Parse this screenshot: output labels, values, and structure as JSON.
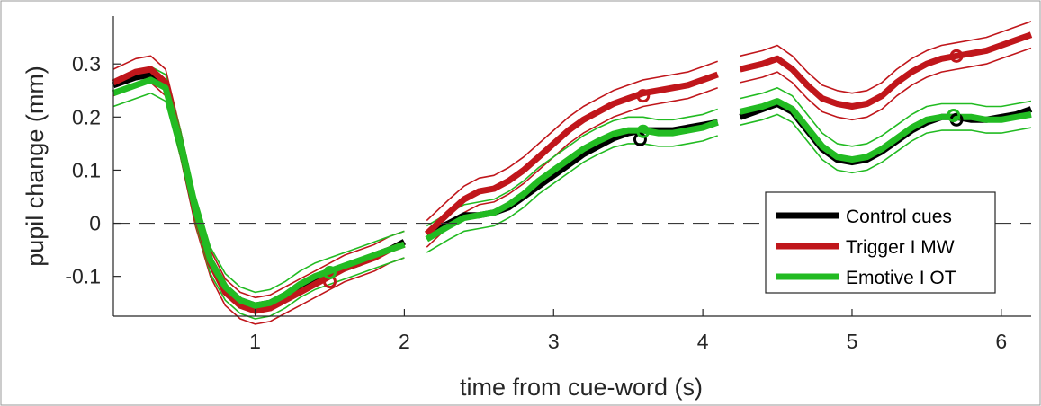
{
  "chart_data": {
    "type": "line",
    "title": "",
    "xlabel": "time from cue-word (s)",
    "ylabel": "pupil change (mm)",
    "xlim": [
      0.05,
      6.2
    ],
    "ylim": [
      -0.175,
      0.39
    ],
    "xticks": [
      1,
      2,
      3,
      4,
      5,
      6
    ],
    "xtick_labels": [
      "1",
      "2",
      "3",
      "4",
      "5",
      "6"
    ],
    "yticks": [
      -0.1,
      0,
      0.1,
      0.2,
      0.3
    ],
    "ytick_labels": [
      "-0.1",
      "0",
      "0.1",
      "0.2",
      "0.3"
    ],
    "zero_line": {
      "y": 0,
      "style": "dashed"
    },
    "legend_position": "bottom-right",
    "grid": false,
    "segments": [
      [
        0.05,
        2.0
      ],
      [
        2.15,
        4.1
      ],
      [
        4.25,
        6.2
      ]
    ],
    "series": [
      {
        "name": "Control cues",
        "color": "#000000",
        "show_band": false,
        "points": [
          [
            0.05,
            0.26
          ],
          [
            0.2,
            0.275
          ],
          [
            0.3,
            0.28
          ],
          [
            0.4,
            0.26
          ],
          [
            0.5,
            0.15
          ],
          [
            0.6,
            0.02
          ],
          [
            0.7,
            -0.07
          ],
          [
            0.8,
            -0.12
          ],
          [
            0.9,
            -0.145
          ],
          [
            1.0,
            -0.155
          ],
          [
            1.1,
            -0.15
          ],
          [
            1.2,
            -0.135
          ],
          [
            1.3,
            -0.12
          ],
          [
            1.4,
            -0.105
          ],
          [
            1.5,
            -0.095
          ],
          [
            1.6,
            -0.085
          ],
          [
            1.7,
            -0.075
          ],
          [
            1.8,
            -0.06
          ],
          [
            1.9,
            -0.05
          ],
          [
            2.0,
            -0.035
          ],
          [
            2.15,
            -0.02
          ],
          [
            2.3,
            0.0
          ],
          [
            2.4,
            0.015
          ],
          [
            2.5,
            0.015
          ],
          [
            2.6,
            0.02
          ],
          [
            2.7,
            0.03
          ],
          [
            2.8,
            0.05
          ],
          [
            2.9,
            0.07
          ],
          [
            3.0,
            0.09
          ],
          [
            3.1,
            0.11
          ],
          [
            3.2,
            0.13
          ],
          [
            3.3,
            0.145
          ],
          [
            3.4,
            0.16
          ],
          [
            3.5,
            0.17
          ],
          [
            3.6,
            0.175
          ],
          [
            3.7,
            0.175
          ],
          [
            3.8,
            0.175
          ],
          [
            3.9,
            0.18
          ],
          [
            4.0,
            0.185
          ],
          [
            4.1,
            0.19
          ],
          [
            4.25,
            0.2
          ],
          [
            4.4,
            0.215
          ],
          [
            4.5,
            0.225
          ],
          [
            4.6,
            0.21
          ],
          [
            4.7,
            0.175
          ],
          [
            4.8,
            0.14
          ],
          [
            4.9,
            0.12
          ],
          [
            5.0,
            0.115
          ],
          [
            5.1,
            0.12
          ],
          [
            5.2,
            0.135
          ],
          [
            5.3,
            0.155
          ],
          [
            5.4,
            0.175
          ],
          [
            5.5,
            0.19
          ],
          [
            5.6,
            0.2
          ],
          [
            5.7,
            0.2
          ],
          [
            5.8,
            0.195
          ],
          [
            5.9,
            0.195
          ],
          [
            6.0,
            0.2
          ],
          [
            6.1,
            0.205
          ],
          [
            6.2,
            0.215
          ]
        ],
        "marker": {
          "x": 3.58,
          "y": 0.158
        },
        "marker2": {
          "x": 5.7,
          "y": 0.195
        }
      },
      {
        "name": "Trigger I MW",
        "color": "#c0161b",
        "band_width": 0.025,
        "show_band": true,
        "points": [
          [
            0.05,
            0.265
          ],
          [
            0.2,
            0.285
          ],
          [
            0.3,
            0.29
          ],
          [
            0.4,
            0.265
          ],
          [
            0.5,
            0.15
          ],
          [
            0.6,
            0.02
          ],
          [
            0.7,
            -0.075
          ],
          [
            0.8,
            -0.13
          ],
          [
            0.9,
            -0.155
          ],
          [
            1.0,
            -0.165
          ],
          [
            1.1,
            -0.16
          ],
          [
            1.2,
            -0.145
          ],
          [
            1.3,
            -0.13
          ],
          [
            1.4,
            -0.115
          ],
          [
            1.5,
            -0.1
          ],
          [
            1.6,
            -0.085
          ],
          [
            1.7,
            -0.075
          ],
          [
            1.8,
            -0.065
          ],
          [
            1.9,
            -0.05
          ],
          [
            2.0,
            -0.04
          ],
          [
            2.15,
            -0.02
          ],
          [
            2.3,
            0.02
          ],
          [
            2.4,
            0.045
          ],
          [
            2.5,
            0.06
          ],
          [
            2.6,
            0.065
          ],
          [
            2.7,
            0.08
          ],
          [
            2.8,
            0.1
          ],
          [
            2.9,
            0.125
          ],
          [
            3.0,
            0.15
          ],
          [
            3.1,
            0.175
          ],
          [
            3.2,
            0.195
          ],
          [
            3.3,
            0.21
          ],
          [
            3.4,
            0.225
          ],
          [
            3.5,
            0.235
          ],
          [
            3.6,
            0.245
          ],
          [
            3.7,
            0.25
          ],
          [
            3.8,
            0.255
          ],
          [
            3.9,
            0.26
          ],
          [
            4.0,
            0.27
          ],
          [
            4.1,
            0.28
          ],
          [
            4.25,
            0.29
          ],
          [
            4.4,
            0.3
          ],
          [
            4.5,
            0.31
          ],
          [
            4.6,
            0.29
          ],
          [
            4.7,
            0.26
          ],
          [
            4.8,
            0.235
          ],
          [
            4.9,
            0.225
          ],
          [
            5.0,
            0.22
          ],
          [
            5.1,
            0.225
          ],
          [
            5.2,
            0.24
          ],
          [
            5.3,
            0.265
          ],
          [
            5.4,
            0.285
          ],
          [
            5.5,
            0.3
          ],
          [
            5.6,
            0.31
          ],
          [
            5.7,
            0.315
          ],
          [
            5.8,
            0.32
          ],
          [
            5.9,
            0.325
          ],
          [
            6.0,
            0.335
          ],
          [
            6.1,
            0.345
          ],
          [
            6.2,
            0.355
          ]
        ],
        "marker": {
          "x": 3.6,
          "y": 0.24
        },
        "marker2": {
          "x": 5.7,
          "y": 0.315
        },
        "marker3": {
          "x": 1.5,
          "y": -0.11
        }
      },
      {
        "name": "Emotive I OT",
        "color": "#22bb22",
        "band_width": 0.025,
        "show_band": true,
        "points": [
          [
            0.05,
            0.245
          ],
          [
            0.2,
            0.26
          ],
          [
            0.3,
            0.27
          ],
          [
            0.4,
            0.255
          ],
          [
            0.5,
            0.15
          ],
          [
            0.6,
            0.025
          ],
          [
            0.7,
            -0.07
          ],
          [
            0.8,
            -0.12
          ],
          [
            0.9,
            -0.145
          ],
          [
            1.0,
            -0.155
          ],
          [
            1.1,
            -0.15
          ],
          [
            1.2,
            -0.135
          ],
          [
            1.3,
            -0.115
          ],
          [
            1.4,
            -0.1
          ],
          [
            1.5,
            -0.09
          ],
          [
            1.6,
            -0.08
          ],
          [
            1.7,
            -0.07
          ],
          [
            1.8,
            -0.06
          ],
          [
            1.9,
            -0.05
          ],
          [
            2.0,
            -0.04
          ],
          [
            2.15,
            -0.03
          ],
          [
            2.3,
            -0.005
          ],
          [
            2.4,
            0.01
          ],
          [
            2.5,
            0.015
          ],
          [
            2.6,
            0.02
          ],
          [
            2.7,
            0.035
          ],
          [
            2.8,
            0.055
          ],
          [
            2.9,
            0.08
          ],
          [
            3.0,
            0.1
          ],
          [
            3.1,
            0.12
          ],
          [
            3.2,
            0.14
          ],
          [
            3.3,
            0.155
          ],
          [
            3.4,
            0.168
          ],
          [
            3.5,
            0.175
          ],
          [
            3.6,
            0.175
          ],
          [
            3.7,
            0.17
          ],
          [
            3.8,
            0.17
          ],
          [
            3.9,
            0.175
          ],
          [
            4.0,
            0.18
          ],
          [
            4.1,
            0.19
          ],
          [
            4.25,
            0.21
          ],
          [
            4.4,
            0.22
          ],
          [
            4.5,
            0.23
          ],
          [
            4.6,
            0.215
          ],
          [
            4.7,
            0.18
          ],
          [
            4.8,
            0.145
          ],
          [
            4.9,
            0.125
          ],
          [
            5.0,
            0.12
          ],
          [
            5.1,
            0.125
          ],
          [
            5.2,
            0.14
          ],
          [
            5.3,
            0.16
          ],
          [
            5.4,
            0.18
          ],
          [
            5.5,
            0.195
          ],
          [
            5.6,
            0.2
          ],
          [
            5.7,
            0.2
          ],
          [
            5.8,
            0.2
          ],
          [
            5.9,
            0.195
          ],
          [
            6.0,
            0.195
          ],
          [
            6.1,
            0.2
          ],
          [
            6.2,
            0.205
          ]
        ],
        "marker": {
          "x": 3.6,
          "y": 0.173
        },
        "marker2": {
          "x": 5.68,
          "y": 0.203
        },
        "marker3": {
          "x": 1.5,
          "y": -0.093
        }
      }
    ]
  }
}
